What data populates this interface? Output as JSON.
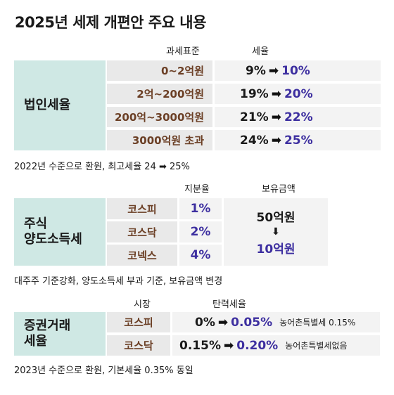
{
  "title": "2025년 세제 개편안 주요 내용",
  "corp": {
    "category": "법인세율",
    "col_base": "과세표준",
    "col_rate": "세율",
    "rows": [
      {
        "base": "0~2억원",
        "old": "9%",
        "new": "10%"
      },
      {
        "base": "2억~200억원",
        "old": "19%",
        "new": "20%"
      },
      {
        "base": "200억~3000억원",
        "old": "21%",
        "new": "22%"
      },
      {
        "base": "3000억원 초과",
        "old": "24%",
        "new": "25%"
      }
    ],
    "note": "2022년 수준으로 환원, 최고세율 24 ➡ 25%"
  },
  "stock": {
    "category_line1": "주식",
    "category_line2": "양도소득세",
    "col_share": "지분율",
    "col_holding": "보유금액",
    "rows": [
      {
        "market": "코스피",
        "share": "1%"
      },
      {
        "market": "코스닥",
        "share": "2%"
      },
      {
        "market": "코넥스",
        "share": "4%"
      }
    ],
    "holding_old": "50억원",
    "holding_new": "10억원",
    "note": "대주주 기준강화, 양도소득세 부과 기준, 보유금액 변경"
  },
  "sec": {
    "category_line1": "증권거래",
    "category_line2": "세율",
    "col_market": "시장",
    "col_rate": "탄력세율",
    "rows": [
      {
        "market": "코스피",
        "old": "0%",
        "new": "0.05%",
        "extra": "농어촌특별세 0.15%"
      },
      {
        "market": "코스닥",
        "old": "0.15%",
        "new": "0.20%",
        "extra": "농어촌특별세없음"
      }
    ],
    "note": "2023년 수준으로 환원, 기본세율 0.35% 동일"
  },
  "arrow_glyph": "➡",
  "down_arrow_glyph": "⬇",
  "colors": {
    "category_bg": "#cfe8e4",
    "cell_bg": "#e9e9e9",
    "brown": "#6b3f25",
    "purple": "#3d2fa0"
  }
}
